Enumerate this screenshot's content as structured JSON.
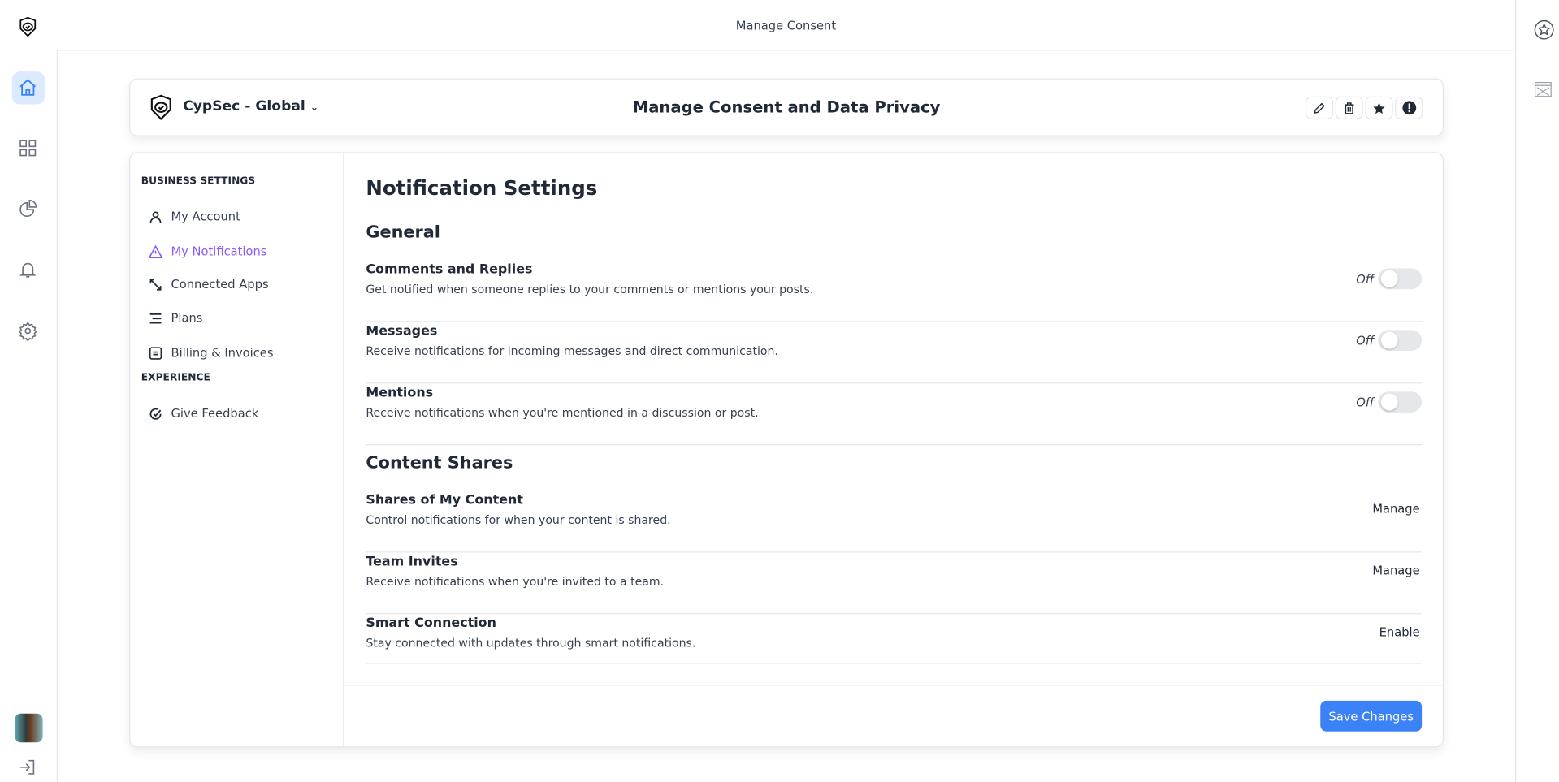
{
  "app": {
    "title": "Manage Consent"
  },
  "header": {
    "org": "CypSec - Global",
    "title": "Manage Consent and Data Privacy",
    "actions": [
      "edit-icon",
      "trash-icon",
      "star-icon",
      "alert-icon"
    ]
  },
  "sidebar": {
    "sections": [
      {
        "label": "BUSINESS SETTINGS"
      },
      {
        "label": "EXPERIENCE"
      }
    ],
    "items": [
      {
        "label": "My Account",
        "icon": "user-icon"
      },
      {
        "label": "My Notifications",
        "icon": "warning-triangle-icon",
        "active": true
      },
      {
        "label": "Connected Apps",
        "icon": "arrows-icon"
      },
      {
        "label": "Plans",
        "icon": "lines-icon"
      },
      {
        "label": "Billing & Invoices",
        "icon": "invoice-icon"
      },
      {
        "label": "Give Feedback",
        "icon": "feedback-icon"
      }
    ]
  },
  "main": {
    "title": "Notification Settings",
    "general": {
      "heading": "General",
      "rows": [
        {
          "title": "Comments and Replies",
          "desc": "Get notified when someone replies to your comments or mentions your posts.",
          "state": "Off"
        },
        {
          "title": "Messages",
          "desc": "Receive notifications for incoming messages and direct communication.",
          "state": "Off"
        },
        {
          "title": "Mentions",
          "desc": "Receive notifications when you're mentioned in a discussion or post.",
          "state": "Off"
        }
      ]
    },
    "shares": {
      "heading": "Content Shares",
      "rows": [
        {
          "title": "Shares of My Content",
          "desc": "Control notifications for when your content is shared.",
          "action": "Manage"
        },
        {
          "title": "Team Invites",
          "desc": "Receive notifications when you're invited to a team.",
          "action": "Manage"
        },
        {
          "title": "Smart Connection",
          "desc": "Stay connected with updates through smart notifications.",
          "action": "Enable"
        }
      ]
    },
    "save_label": "Save Changes"
  },
  "colors": {
    "accent": "#3b82f6",
    "active_nav": "#8b5cf6",
    "active_rail_bg": "#dbeafe"
  }
}
